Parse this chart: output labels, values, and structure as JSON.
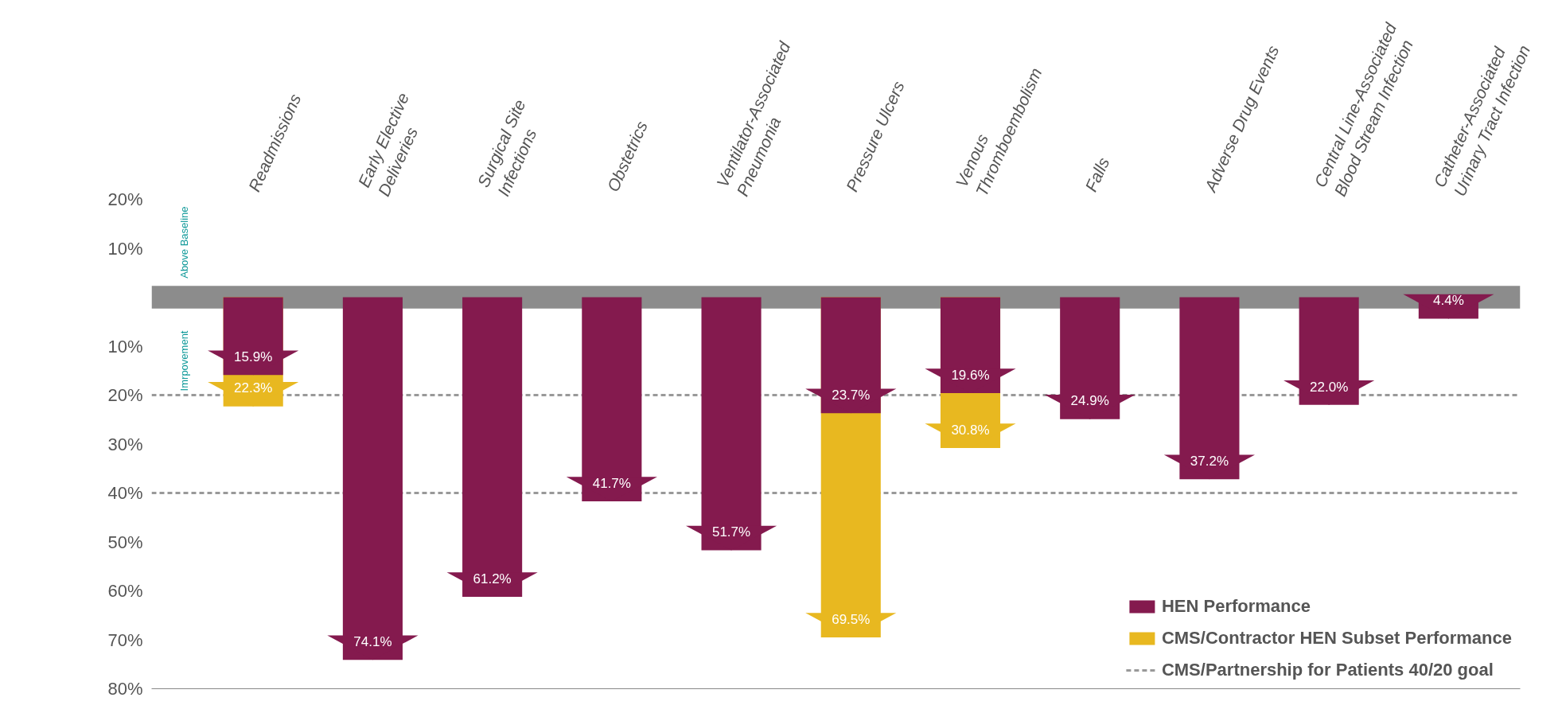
{
  "chart_data": {
    "type": "bar",
    "categories": [
      "Readmissions",
      "Early Elective\nDeliveries",
      "Surgical Site\nInfections",
      "Obstetrics",
      "Ventilator-Associated\nPneumonia",
      "Pressure Ulcers",
      "Venous\nThromboembolism",
      "Falls",
      "Adverse Drug Events",
      "Central Line-Associated\nBlood Stream Infection",
      "Catheter-Associated\nUrinary Tract Infection"
    ],
    "series": [
      {
        "name": "HEN Performance",
        "color": "#841a4e",
        "values": [
          15.9,
          74.1,
          61.2,
          41.7,
          51.7,
          23.7,
          19.6,
          24.9,
          37.2,
          22.0,
          4.4
        ],
        "value_labels": [
          "15.9%",
          "74.1%",
          "61.2%",
          "41.7%",
          "51.7%",
          "23.7%",
          "19.6%",
          "24.9%",
          "37.2%",
          "22.0%",
          "4.4%"
        ]
      },
      {
        "name": "CMS/Contractor HEN Subset Performance",
        "color": "#e8b820",
        "values": [
          22.3,
          null,
          null,
          null,
          null,
          69.5,
          30.8,
          null,
          null,
          null,
          null
        ],
        "value_labels": [
          "22.3%",
          null,
          null,
          null,
          null,
          "69.5%",
          "30.8%",
          null,
          null,
          null,
          null
        ]
      }
    ],
    "ylim": [
      80,
      -20
    ],
    "yticks": [
      {
        "value": -20,
        "label": "20%"
      },
      {
        "value": -10,
        "label": "10%"
      },
      {
        "value": 10,
        "label": "10%"
      },
      {
        "value": 20,
        "label": "20%"
      },
      {
        "value": 30,
        "label": "30%"
      },
      {
        "value": 40,
        "label": "40%"
      },
      {
        "value": 50,
        "label": "50%"
      },
      {
        "value": 60,
        "label": "60%"
      },
      {
        "value": 70,
        "label": "70%"
      },
      {
        "value": 80,
        "label": "80%"
      }
    ],
    "bands": [
      {
        "axis": "y",
        "from": -2.3,
        "to": 2.3,
        "color": "#8c8c8c"
      }
    ],
    "ref_lines": [
      {
        "axis": "y",
        "value": 20,
        "label": "CMS/Partnership for Patients 40/20 goal",
        "color": "#999999",
        "line_style": "dashed"
      },
      {
        "axis": "y",
        "value": 40,
        "color": "#999999",
        "line_style": "dashed"
      }
    ],
    "annotations": [
      "Above Baseline",
      "Imrpovement"
    ],
    "legend": "bottom right",
    "grid": false
  }
}
